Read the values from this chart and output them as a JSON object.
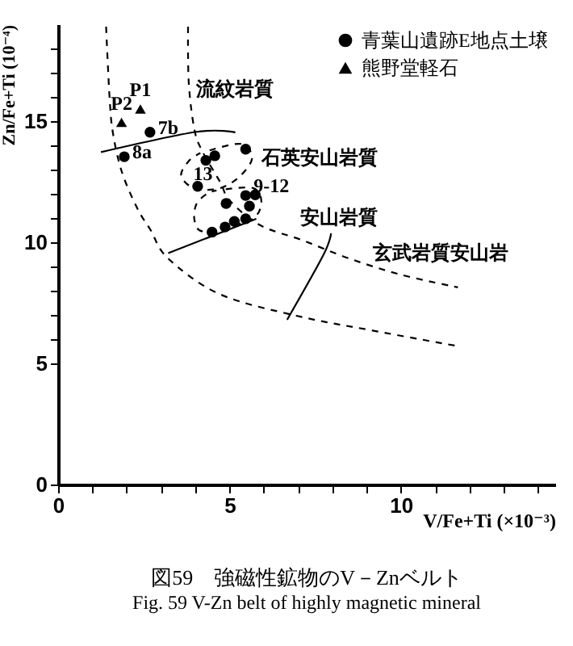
{
  "chart_data": {
    "type": "scatter",
    "title": "図59　強磁性鉱物のV－Znベルト",
    "subtitle": "Fig. 59  V-Zn belt of highly magnetic mineral",
    "xlabel": "V/Fe+Ti (×10⁻³)",
    "ylabel": "Zn/Fe+Ti (10⁻⁴)",
    "xlim": [
      0,
      14.5
    ],
    "ylim": [
      0,
      19
    ],
    "xticks": [
      0,
      {
        "value": 1,
        "label": null
      },
      {
        "value": 2,
        "label": null
      },
      {
        "value": 3,
        "label": null
      },
      {
        "value": 4,
        "label": null
      },
      5,
      {
        "value": 6,
        "label": null
      },
      {
        "value": 7,
        "label": null
      },
      {
        "value": 8,
        "label": null
      },
      {
        "value": 9,
        "label": null
      },
      10,
      {
        "value": 11,
        "label": null
      },
      {
        "value": 12,
        "label": null
      },
      {
        "value": 13,
        "label": null
      },
      {
        "value": 14,
        "label": null
      }
    ],
    "yticks": [
      0,
      5,
      {
        "value": 6,
        "label": null
      },
      {
        "value": 7,
        "label": null
      },
      {
        "value": 8,
        "label": null
      },
      {
        "value": 9,
        "label": null
      },
      10,
      {
        "value": 11,
        "label": null
      },
      {
        "value": 12,
        "label": null
      },
      {
        "value": 13,
        "label": null
      },
      {
        "value": 14,
        "label": null
      },
      15,
      {
        "value": 16,
        "label": null
      },
      {
        "value": 17,
        "label": null
      },
      {
        "value": 18,
        "label": null
      }
    ],
    "legend": "top right",
    "series": [
      {
        "name": "青葉山遺跡E地点土壌",
        "type": "scatter",
        "marker": "circle",
        "color": "#000000",
        "x": [
          2.68,
          1.93,
          5.47,
          4.57,
          4.31,
          4.07,
          5.47,
          5.75,
          4.9,
          5.58,
          5.47,
          5.14,
          4.87,
          4.49
        ],
        "values": [
          14.54,
          13.53,
          13.84,
          13.57,
          13.38,
          12.31,
          11.93,
          11.96,
          11.6,
          11.49,
          10.97,
          10.86,
          10.63,
          10.42
        ]
      },
      {
        "name": "熊野堂軽石",
        "type": "scatter",
        "marker": "triangle",
        "color": "#000000",
        "x": [
          2.4,
          1.85
        ],
        "values": [
          15.5,
          14.95
        ]
      },
      {
        "type": "line",
        "line_style": "dashed",
        "color": "#000000",
        "x": [
          1.4,
          1.5,
          1.6,
          1.86,
          2.31,
          2.7,
          3.21,
          4.71,
          6.97,
          9.23,
          11.67
        ],
        "values": [
          18.9,
          16,
          14.5,
          12.9,
          11.4,
          10.5,
          9.33,
          7.86,
          6.96,
          6.34,
          5.71
        ]
      },
      {
        "type": "line",
        "line_style": "dashed",
        "color": "#000000",
        "x": [
          3.79,
          3.81,
          3.97,
          4.19,
          4.72,
          5.02,
          5.9,
          7.13,
          8.49,
          10.0,
          11.66
        ],
        "values": [
          18.9,
          16.6,
          14.7,
          13.8,
          12.5,
          11.7,
          10.7,
          10.08,
          9.33,
          8.66,
          8.14
        ]
      },
      {
        "type": "line",
        "line_style": "dashed",
        "color": "#000000",
        "x": [
          4.42,
          5.32,
          5.66,
          5.32,
          4.72,
          3.97,
          3.59,
          3.81,
          4.15
        ],
        "values": [
          13.79,
          14.06,
          13.5,
          12.75,
          12.23,
          12.23,
          12.75,
          13.35,
          13.68
        ]
      },
      {
        "type": "line",
        "line_style": "dashed",
        "color": "#000000",
        "x": [
          4.89,
          5.7,
          5.93,
          5.7,
          5.02,
          4.21,
          3.98,
          4.03,
          4.34,
          4.62
        ],
        "values": [
          12.19,
          12.23,
          11.65,
          10.98,
          10.67,
          10.45,
          10.89,
          11.56,
          12.0,
          12.14
        ]
      },
      {
        "type": "line",
        "line_style": "solid",
        "color": "#000000",
        "x": [
          1.25,
          4.0,
          5.17
        ],
        "values": [
          13.72,
          14.55,
          14.54
        ]
      },
      {
        "type": "line",
        "line_style": "solid",
        "color": "#000000",
        "x": [
          3.21,
          5.78
        ],
        "values": [
          9.55,
          10.97
        ]
      },
      {
        "type": "line",
        "line_style": "solid",
        "color": "#000000",
        "x": [
          6.68,
          7.74,
          7.96
        ],
        "values": [
          6.8,
          9.48,
          10.37
        ]
      }
    ],
    "annotations": [
      {
        "text": "P1",
        "x": 2.4,
        "y": 15.5
      },
      {
        "text": "P2",
        "x": 1.85,
        "y": 14.95
      },
      {
        "text": "7b",
        "x": 2.68,
        "y": 14.54
      },
      {
        "text": "8a",
        "x": 1.93,
        "y": 13.53
      },
      "13",
      "9-12",
      "流紋岩質",
      "石英安山岩質",
      "安山岩質",
      "玄武岩質安山岩"
    ]
  }
}
